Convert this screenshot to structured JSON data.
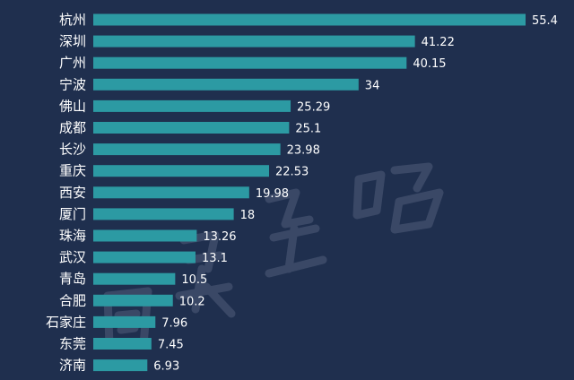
{
  "chart_data": {
    "type": "bar",
    "orientation": "horizontal",
    "categories": [
      "杭州",
      "深圳",
      "广州",
      "宁波",
      "佛山",
      "成都",
      "长沙",
      "重庆",
      "西安",
      "厦门",
      "珠海",
      "武汉",
      "青岛",
      "合肥",
      "石家庄",
      "东莞",
      "济南"
    ],
    "values": [
      55.4,
      41.22,
      40.15,
      34,
      25.29,
      25.1,
      23.98,
      22.53,
      19.98,
      18,
      13.26,
      13.1,
      10.5,
      10.2,
      7.96,
      7.45,
      6.93
    ],
    "value_labels": [
      "55.4",
      "41.22",
      "40.15",
      "34",
      "25.29",
      "25.1",
      "23.98",
      "22.53",
      "19.98",
      "18",
      "13.26",
      "13.1",
      "10.5",
      "10.2",
      "7.96",
      "7.45",
      "6.93"
    ],
    "title": "",
    "xlabel": "",
    "ylabel": "",
    "xlim": [
      0,
      55.4
    ],
    "grid": false,
    "legend": "none",
    "colors": {
      "background": "#1f2f4e",
      "bar": "#2c9aa3",
      "text": "#ffffff"
    }
  },
  "watermark": {
    "text": "国民经略",
    "icon": "watermark-brush-text"
  }
}
